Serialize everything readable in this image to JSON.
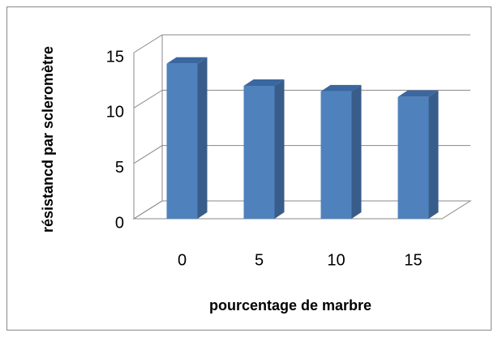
{
  "chart_data": {
    "type": "bar3d",
    "categories": [
      "0",
      "5",
      "10",
      "15"
    ],
    "values": [
      14,
      12,
      11.5,
      11
    ],
    "color": "#4f81bd",
    "ylabel": "résistancd par scleromètre",
    "xlabel": "pourcentage de marbre",
    "ylim": [
      0,
      15
    ],
    "yticks": [
      0,
      5,
      10,
      15
    ],
    "grid": true
  }
}
